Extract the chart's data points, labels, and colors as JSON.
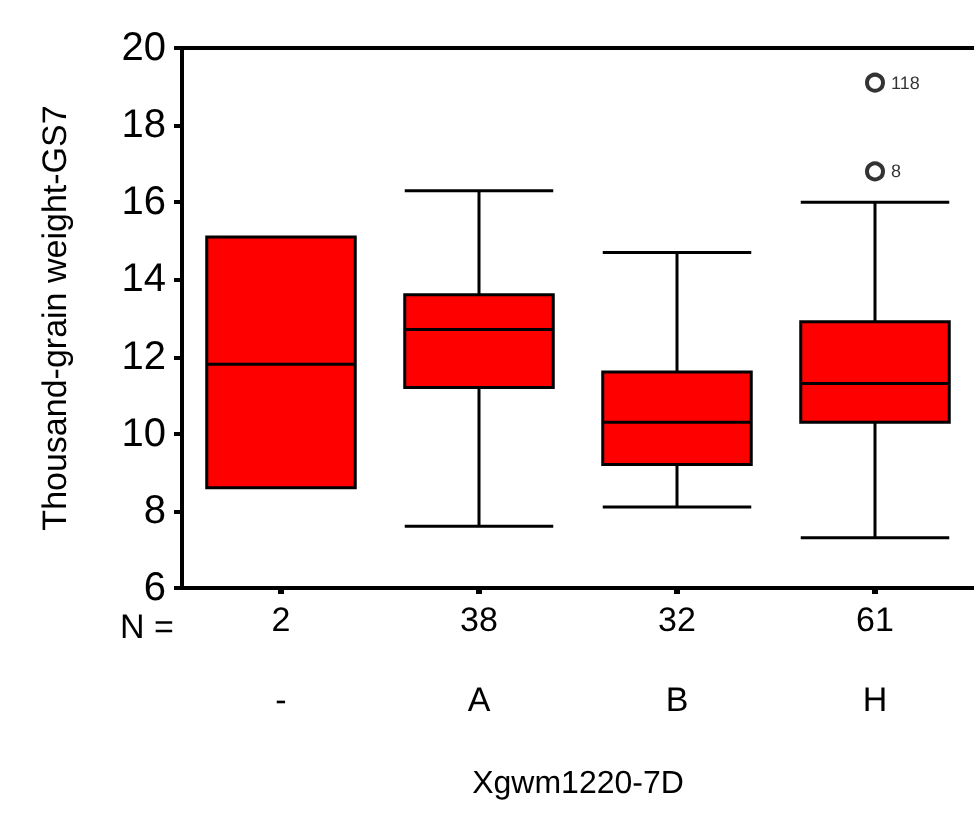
{
  "chart_data": {
    "type": "box",
    "xlabel": "Xgwm1220-7D",
    "ylabel": "Thousand-grain weight-GS7",
    "categories": [
      "-",
      "A",
      "B",
      "H"
    ],
    "color": "#ff0000",
    "boxes": [
      {
        "low": 8.6,
        "q1": 8.6,
        "median": 11.8,
        "q3": 15.1,
        "high": 15.1
      },
      {
        "low": 7.6,
        "q1": 11.2,
        "median": 12.7,
        "q3": 13.6,
        "high": 16.3
      },
      {
        "low": 8.1,
        "q1": 9.2,
        "median": 10.3,
        "q3": 11.6,
        "high": 14.7
      },
      {
        "low": 7.3,
        "q1": 10.3,
        "median": 11.3,
        "q3": 12.9,
        "high": 16.0,
        "outliers": [
          19.1,
          16.8
        ]
      }
    ],
    "ylim": [
      6,
      20
    ],
    "yticks": [
      6,
      8,
      10,
      12,
      14,
      16,
      18,
      20
    ],
    "grid": false,
    "annotations": [
      "N =",
      {
        "text": "2",
        "x": "-"
      },
      {
        "text": "38",
        "x": "A"
      },
      {
        "text": "32",
        "x": "B"
      },
      {
        "text": "61",
        "x": "H"
      },
      "118",
      "8"
    ]
  }
}
